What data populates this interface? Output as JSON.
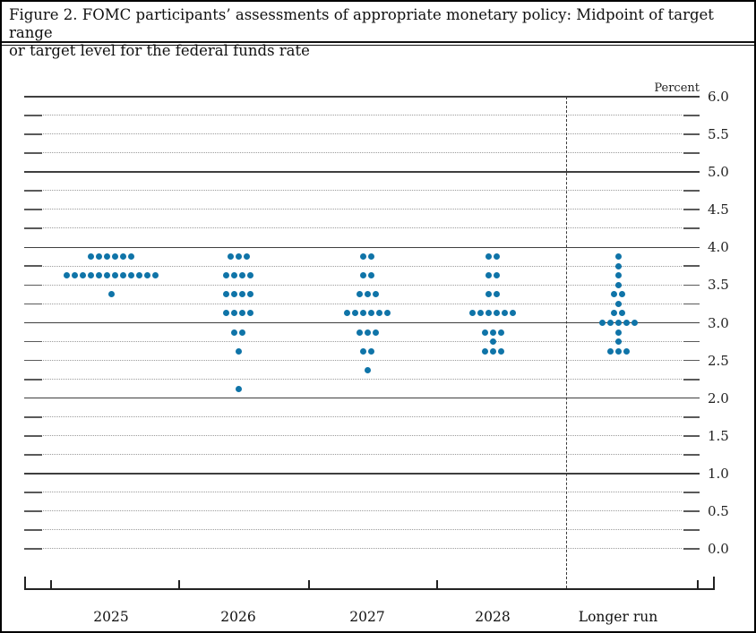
{
  "figure": {
    "title_line1": "Figure 2. FOMC participants’ assessments of appropriate monetary policy: Midpoint of target range",
    "title_line2": "or target level for the federal funds rate"
  },
  "colors": {
    "dot": "#0f74a8",
    "grid_solid": "#3f3f3f",
    "grid_dotted": "#9c9c9c",
    "axis": "#222222",
    "text": "#1a1a1a"
  },
  "chart_data": {
    "type": "scatter",
    "subtype": "dot-plot",
    "title": "Figure 2. FOMC participants’ assessments of appropriate monetary policy: Midpoint of target range or target level for the federal funds rate",
    "unit_label": "Percent",
    "ylim": [
      0.0,
      6.0
    ],
    "ytick_label_step": 0.5,
    "ytick_minor_step": 0.25,
    "ytick_labels": [
      "6.0",
      "5.5",
      "5.0",
      "4.5",
      "4.0",
      "3.5",
      "3.0",
      "2.5",
      "2.0",
      "1.5",
      "1.0",
      "0.5",
      "0.0"
    ],
    "solid_gridline_values": [
      6.0,
      5.0,
      4.0,
      3.0,
      2.0,
      1.0
    ],
    "grid": true,
    "legend": false,
    "categories": [
      "2025",
      "2026",
      "2027",
      "2028",
      "Longer run"
    ],
    "separator_before_category": "Longer run",
    "dots_per_category_total": 19,
    "series": [
      {
        "category": "2025",
        "dots": [
          {
            "value": 3.875,
            "count": 6
          },
          {
            "value": 3.625,
            "count": 12
          },
          {
            "value": 3.375,
            "count": 1
          }
        ]
      },
      {
        "category": "2026",
        "dots": [
          {
            "value": 3.875,
            "count": 3
          },
          {
            "value": 3.625,
            "count": 4
          },
          {
            "value": 3.375,
            "count": 4
          },
          {
            "value": 3.125,
            "count": 4
          },
          {
            "value": 2.875,
            "count": 2
          },
          {
            "value": 2.625,
            "count": 1
          },
          {
            "value": 2.125,
            "count": 1
          }
        ]
      },
      {
        "category": "2027",
        "dots": [
          {
            "value": 3.875,
            "count": 2
          },
          {
            "value": 3.625,
            "count": 2
          },
          {
            "value": 3.375,
            "count": 3
          },
          {
            "value": 3.125,
            "count": 6
          },
          {
            "value": 2.875,
            "count": 3
          },
          {
            "value": 2.625,
            "count": 2
          },
          {
            "value": 2.375,
            "count": 1
          }
        ]
      },
      {
        "category": "2028",
        "dots": [
          {
            "value": 3.875,
            "count": 2
          },
          {
            "value": 3.625,
            "count": 2
          },
          {
            "value": 3.375,
            "count": 2
          },
          {
            "value": 3.125,
            "count": 6
          },
          {
            "value": 2.875,
            "count": 3
          },
          {
            "value": 2.75,
            "count": 1
          },
          {
            "value": 2.625,
            "count": 3
          }
        ]
      },
      {
        "category": "Longer run",
        "dots": [
          {
            "value": 3.875,
            "count": 1
          },
          {
            "value": 3.75,
            "count": 1
          },
          {
            "value": 3.625,
            "count": 1
          },
          {
            "value": 3.5,
            "count": 1
          },
          {
            "value": 3.375,
            "count": 2
          },
          {
            "value": 3.25,
            "count": 1
          },
          {
            "value": 3.125,
            "count": 2
          },
          {
            "value": 3.0,
            "count": 5
          },
          {
            "value": 2.875,
            "count": 1
          },
          {
            "value": 2.75,
            "count": 1
          },
          {
            "value": 2.625,
            "count": 3
          }
        ]
      }
    ]
  }
}
